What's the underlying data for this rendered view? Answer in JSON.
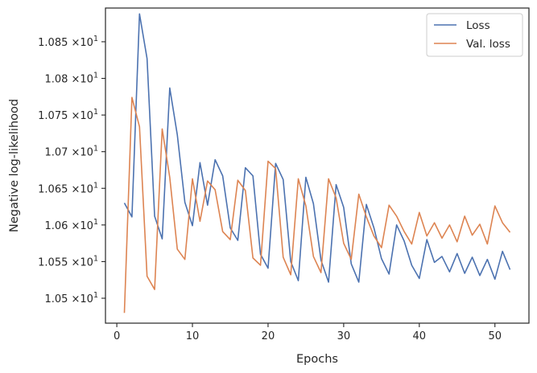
{
  "chart_data": {
    "type": "line",
    "title": "",
    "xlabel": "Epochs",
    "ylabel": "Negative log-likelihood",
    "xlim": [
      -1.5,
      54.5
    ],
    "ylim": [
      10.466,
      10.896
    ],
    "xticks": [
      0,
      10,
      20,
      30,
      40,
      50
    ],
    "xtick_labels": [
      "0",
      "10",
      "20",
      "30",
      "40",
      "50"
    ],
    "yticks": [
      10.5,
      10.55,
      10.6,
      10.65,
      10.7,
      10.75,
      10.8,
      10.85
    ],
    "ytick_labels": [
      {
        "base": "1.05",
        "exp": "1"
      },
      {
        "base": "1.055",
        "exp": "1"
      },
      {
        "base": "1.06",
        "exp": "1"
      },
      {
        "base": "1.065",
        "exp": "1"
      },
      {
        "base": "1.07",
        "exp": "1"
      },
      {
        "base": "1.075",
        "exp": "1"
      },
      {
        "base": "1.08",
        "exp": "1"
      },
      {
        "base": "1.085",
        "exp": "1"
      }
    ],
    "ytick_times": "×10",
    "grid": false,
    "legend": "top-right",
    "x": [
      1,
      2,
      3,
      4,
      5,
      6,
      7,
      8,
      9,
      10,
      11,
      12,
      13,
      14,
      15,
      16,
      17,
      18,
      19,
      20,
      21,
      22,
      23,
      24,
      25,
      26,
      27,
      28,
      29,
      30,
      31,
      32,
      33,
      34,
      35,
      36,
      37,
      38,
      39,
      40,
      41,
      42,
      43,
      44,
      45,
      46,
      47,
      48,
      49,
      50,
      51,
      52
    ],
    "series": [
      {
        "name": "Loss",
        "color": "#4c72b0",
        "values": [
          10.63,
          10.611,
          10.888,
          10.827,
          10.612,
          10.581,
          10.787,
          10.723,
          10.631,
          10.599,
          10.685,
          10.627,
          10.689,
          10.667,
          10.596,
          10.579,
          10.678,
          10.667,
          10.56,
          10.541,
          10.684,
          10.662,
          10.55,
          10.524,
          10.665,
          10.629,
          10.552,
          10.522,
          10.655,
          10.624,
          10.547,
          10.522,
          10.628,
          10.596,
          10.554,
          10.533,
          10.6,
          10.578,
          10.545,
          10.527,
          10.58,
          10.549,
          10.557,
          10.536,
          10.561,
          10.534,
          10.556,
          10.531,
          10.553,
          10.526,
          10.564,
          10.539
        ]
      },
      {
        "name": "Val. loss",
        "color": "#dd8452",
        "values": [
          10.48,
          10.774,
          10.734,
          10.53,
          10.512,
          10.731,
          10.665,
          10.567,
          10.553,
          10.663,
          10.605,
          10.66,
          10.648,
          10.591,
          10.58,
          10.661,
          10.647,
          10.555,
          10.545,
          10.687,
          10.677,
          10.556,
          10.532,
          10.663,
          10.626,
          10.557,
          10.535,
          10.663,
          10.637,
          10.575,
          10.553,
          10.642,
          10.611,
          10.585,
          10.569,
          10.627,
          10.612,
          10.591,
          10.574,
          10.617,
          10.585,
          10.603,
          10.582,
          10.6,
          10.577,
          10.612,
          10.586,
          10.601,
          10.574,
          10.626,
          10.603,
          10.59
        ]
      }
    ]
  }
}
